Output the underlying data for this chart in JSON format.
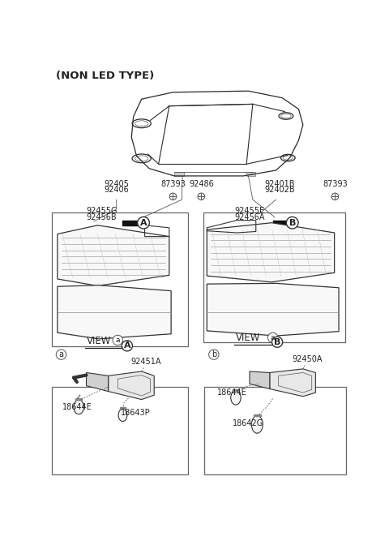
{
  "bg_color": "#ffffff",
  "text_color": "#222222",
  "fig_width": 4.8,
  "fig_height": 6.72,
  "dpi": 100,
  "header": "(NON LED TYPE)",
  "label_92405": "92405",
  "label_92406": "92406",
  "label_92401B": "92401B",
  "label_92402B": "92402B",
  "label_92455G": "92455G",
  "label_92456B": "92456B",
  "label_92455E": "92455E",
  "label_92456A": "92456A",
  "label_87393a": "87393",
  "label_92486": "92486",
  "label_87393b": "87393",
  "label_92451A": "92451A",
  "label_18644E_a": "18644E",
  "label_18643P": "18643P",
  "label_92450A": "92450A",
  "label_18644E_b": "18644E",
  "label_18642G": "18642G",
  "label_view_a": "VIEW",
  "label_view_b": "VIEW",
  "label_A": "A",
  "label_B": "B",
  "label_a": "a",
  "label_b": "b"
}
